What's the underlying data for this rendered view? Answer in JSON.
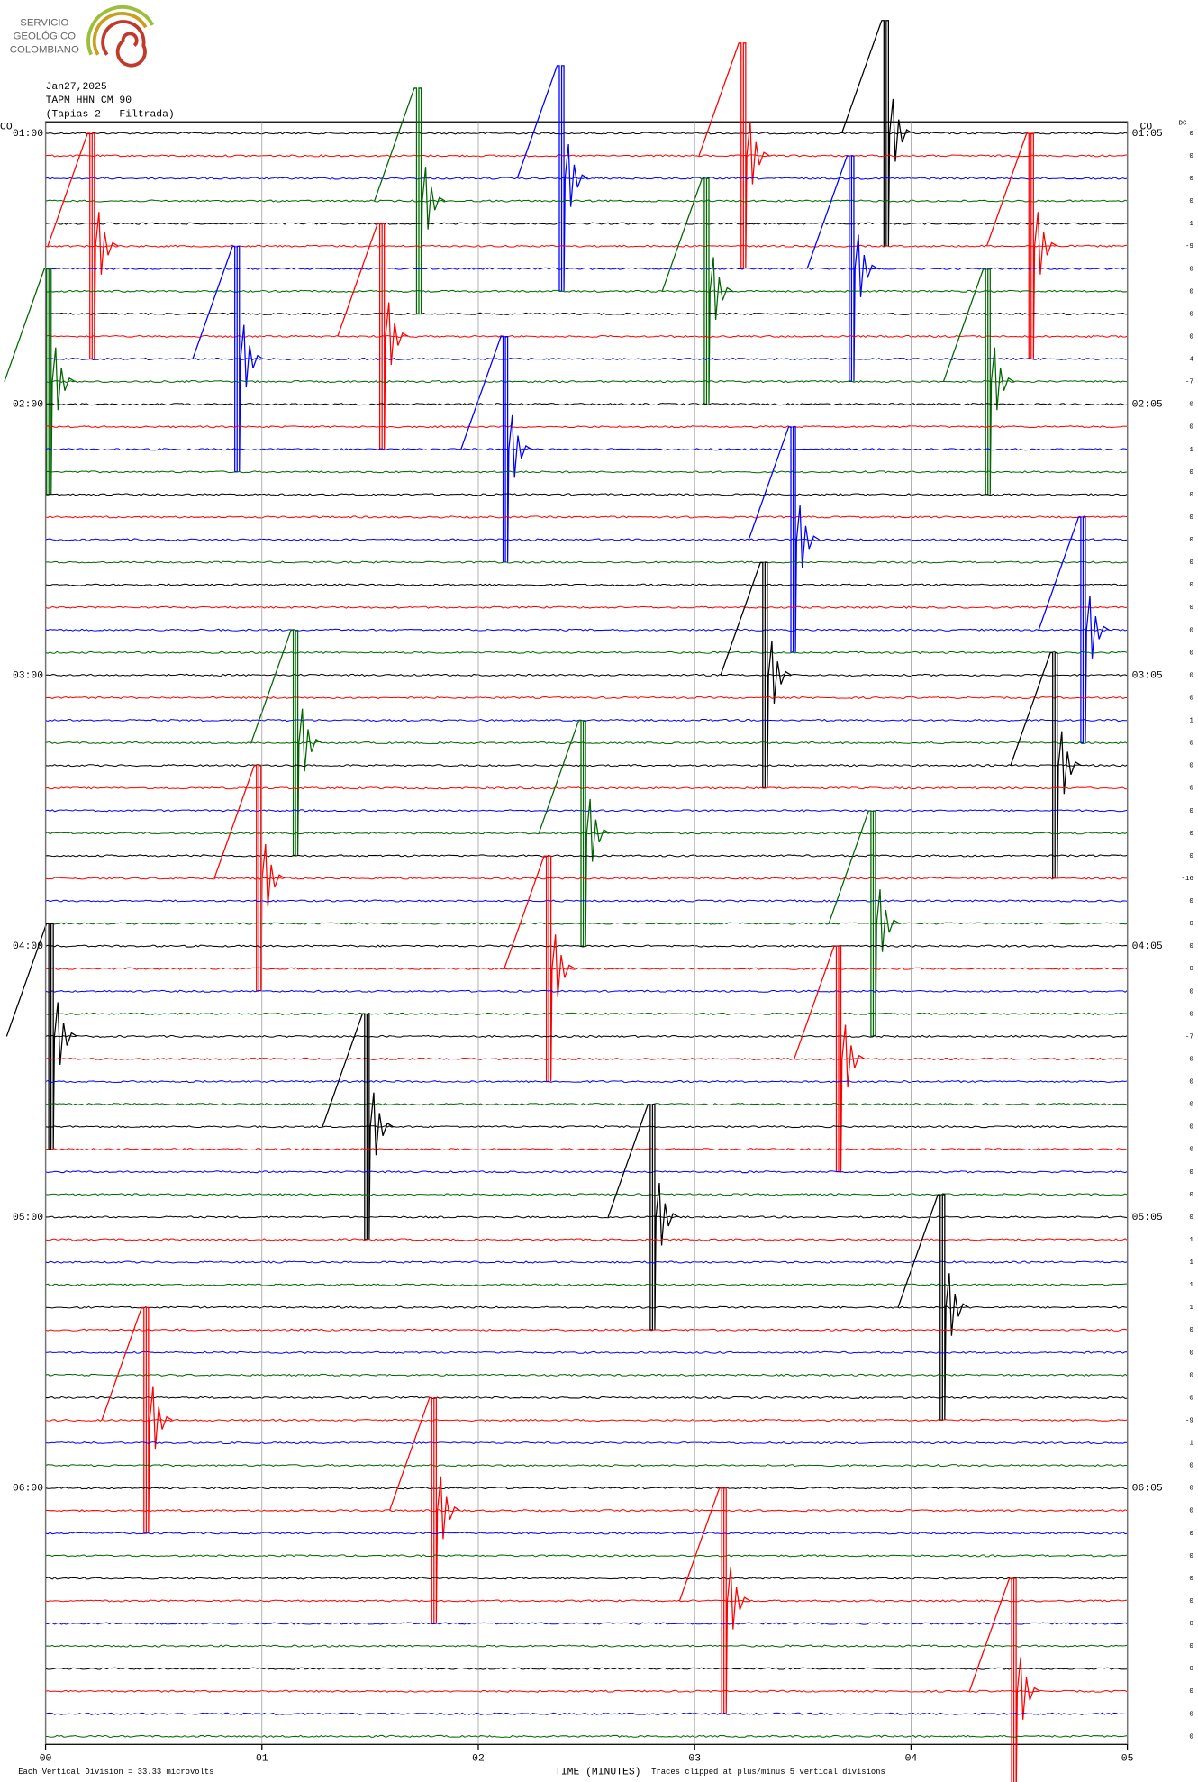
{
  "chart_data": {
    "type": "helicorder",
    "logo": [
      "SERVICIO",
      "GEOLÓGICO",
      "COLOMBIANO"
    ],
    "title_lines": [
      "Jan27,2025",
      "TAPM HHN CM 90",
      "(Tapias 2 - Filtrada)"
    ],
    "network_left": "CO",
    "network_right": "CO",
    "dc_header": "DC",
    "left_labels": [
      "01:00",
      "02:00",
      "03:00",
      "04:00",
      "05:00",
      "06:00"
    ],
    "right_labels": [
      "01:05",
      "02:05",
      "03:05",
      "04:05",
      "05:05",
      "06:05"
    ],
    "xlabel": "TIME (MINUTES)",
    "scale_note": "Each Vertical Division =   33.33 microvolts",
    "clip_note": "Traces clipped at plus/minus 5 vertical divisions",
    "xlim": [
      0,
      5
    ],
    "xticks": [
      {
        "value": 0,
        "label": "00"
      },
      {
        "value": 1,
        "label": "01"
      },
      {
        "value": 2,
        "label": "02"
      },
      {
        "value": 3,
        "label": "03"
      },
      {
        "value": 4,
        "label": "04"
      },
      {
        "value": 5,
        "label": "05"
      }
    ],
    "colors": [
      "#000000",
      "#ff0000",
      "#0000ff",
      "#006600"
    ],
    "rows": [
      {
        "dc": 0,
        "pulses": [
          3.88
        ]
      },
      {
        "dc": 0,
        "pulses": [
          3.22
        ]
      },
      {
        "dc": 0,
        "pulses": [
          2.38
        ]
      },
      {
        "dc": 0,
        "pulses": [
          1.72
        ]
      },
      {
        "dc": 1,
        "pulses": []
      },
      {
        "dc": -9,
        "pulses": [
          0.21,
          4.55
        ]
      },
      {
        "dc": 0,
        "pulses": [
          3.72
        ]
      },
      {
        "dc": 0,
        "pulses": [
          3.05
        ]
      },
      {
        "dc": 0,
        "pulses": []
      },
      {
        "dc": 0,
        "pulses": [
          1.55
        ]
      },
      {
        "dc": 4,
        "pulses": [
          0.88
        ]
      },
      {
        "dc": -7,
        "pulses": [
          0.01,
          4.35
        ]
      },
      {
        "dc": 0,
        "pulses": []
      },
      {
        "dc": 0,
        "pulses": []
      },
      {
        "dc": 1,
        "pulses": [
          2.12
        ]
      },
      {
        "dc": 0,
        "pulses": []
      },
      {
        "dc": 0,
        "pulses": []
      },
      {
        "dc": 0,
        "pulses": []
      },
      {
        "dc": 0,
        "pulses": [
          3.45
        ]
      },
      {
        "dc": 0,
        "pulses": []
      },
      {
        "dc": 0,
        "pulses": []
      },
      {
        "dc": 0,
        "pulses": []
      },
      {
        "dc": 0,
        "pulses": [
          4.79
        ]
      },
      {
        "dc": 0,
        "pulses": []
      },
      {
        "dc": 0,
        "pulses": [
          3.32
        ]
      },
      {
        "dc": 0,
        "pulses": []
      },
      {
        "dc": 1,
        "pulses": []
      },
      {
        "dc": 0,
        "pulses": [
          1.15
        ]
      },
      {
        "dc": 0,
        "pulses": [
          4.66
        ]
      },
      {
        "dc": 0,
        "pulses": []
      },
      {
        "dc": 0,
        "pulses": []
      },
      {
        "dc": 0,
        "pulses": [
          2.48
        ]
      },
      {
        "dc": 0,
        "pulses": []
      },
      {
        "dc": -16,
        "pulses": [
          0.98
        ]
      },
      {
        "dc": 0,
        "pulses": []
      },
      {
        "dc": 0,
        "pulses": [
          3.82
        ]
      },
      {
        "dc": 0,
        "pulses": []
      },
      {
        "dc": 0,
        "pulses": [
          2.32
        ]
      },
      {
        "dc": 0,
        "pulses": []
      },
      {
        "dc": 0,
        "pulses": []
      },
      {
        "dc": -7,
        "pulses": [
          0.02
        ]
      },
      {
        "dc": 0,
        "pulses": [
          3.66
        ]
      },
      {
        "dc": 0,
        "pulses": []
      },
      {
        "dc": 0,
        "pulses": []
      },
      {
        "dc": 0,
        "pulses": [
          1.48
        ]
      },
      {
        "dc": 0,
        "pulses": []
      },
      {
        "dc": 0,
        "pulses": []
      },
      {
        "dc": 0,
        "pulses": []
      },
      {
        "dc": 0,
        "pulses": [
          2.8
        ]
      },
      {
        "dc": 1,
        "pulses": []
      },
      {
        "dc": 1,
        "pulses": []
      },
      {
        "dc": 1,
        "pulses": []
      },
      {
        "dc": 1,
        "pulses": [
          4.14
        ]
      },
      {
        "dc": 0,
        "pulses": []
      },
      {
        "dc": 0,
        "pulses": []
      },
      {
        "dc": 0,
        "pulses": []
      },
      {
        "dc": 0,
        "pulses": []
      },
      {
        "dc": -9,
        "pulses": [
          0.46
        ]
      },
      {
        "dc": 1,
        "pulses": []
      },
      {
        "dc": 0,
        "pulses": []
      },
      {
        "dc": 0,
        "pulses": []
      },
      {
        "dc": 0,
        "pulses": [
          1.79
        ]
      },
      {
        "dc": 0,
        "pulses": []
      },
      {
        "dc": 0,
        "pulses": []
      },
      {
        "dc": 0,
        "pulses": []
      },
      {
        "dc": 0,
        "pulses": [
          3.13
        ]
      },
      {
        "dc": 0,
        "pulses": []
      },
      {
        "dc": 0,
        "pulses": []
      },
      {
        "dc": 0,
        "pulses": []
      },
      {
        "dc": 0,
        "pulses": [
          4.47
        ]
      },
      {
        "dc": 0,
        "pulses": []
      },
      {
        "dc": 0,
        "pulses": []
      }
    ]
  }
}
